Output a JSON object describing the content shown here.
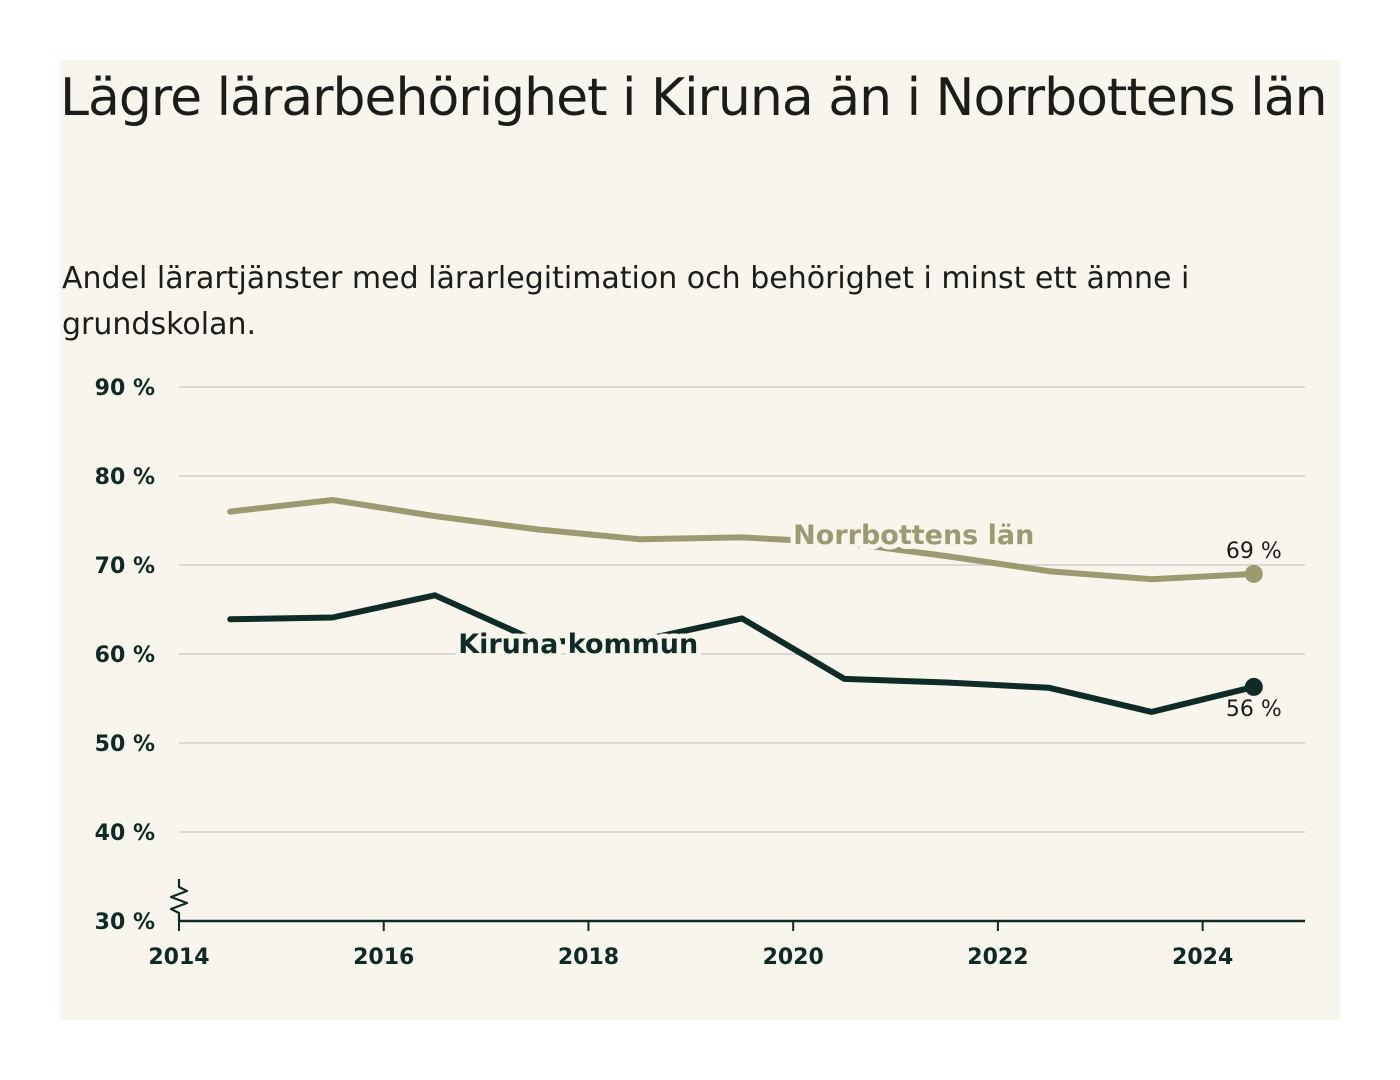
{
  "title": "Lägre lärarbehörighet i Kiruna än i Norrbottens län",
  "subtitle": "Andel lärartjänster med lärarlegitimation och behörighet i minst ett ämne i grundskolan.",
  "colors": {
    "background": "#f8f6ec",
    "norrbotten": "#9d9a72",
    "kiruna": "#0f2b27",
    "grid": "#d9d8d4",
    "axis": "#0e2a26"
  },
  "chart_data": {
    "type": "line",
    "title": "Lägre lärarbehörighet i Kiruna än i Norrbottens län",
    "subtitle": "Andel lärartjänster med lärarlegitimation och behörighet i minst ett ämne i grundskolan.",
    "xlabel": "",
    "ylabel": "",
    "xlim": [
      2014,
      2025
    ],
    "ylim": [
      30,
      90
    ],
    "x_ticks": [
      2014,
      2016,
      2018,
      2020,
      2022,
      2024
    ],
    "x_tick_labels": [
      "2014",
      "2016",
      "2018",
      "2020",
      "2022",
      "2024"
    ],
    "y_ticks": [
      30,
      40,
      50,
      60,
      70,
      80,
      90
    ],
    "y_tick_labels": [
      "30 %",
      "40 %",
      "50 %",
      "60 %",
      "70 %",
      "80 %",
      "90 %"
    ],
    "grid": true,
    "axis_break": true,
    "x": [
      2014.5,
      2015.5,
      2016.5,
      2017.5,
      2018.5,
      2019.5,
      2020.5,
      2021.5,
      2022.5,
      2023.5,
      2024.5
    ],
    "series": [
      {
        "name": "Norrbottens län",
        "values": [
          76.0,
          77.3,
          75.5,
          74.0,
          72.9,
          73.1,
          72.5,
          71.0,
          69.3,
          68.4,
          69.0
        ],
        "end_label": "69 %",
        "color": "#9d9a72"
      },
      {
        "name": "Kiruna kommun",
        "values": [
          63.9,
          64.1,
          66.6,
          61.4,
          61.5,
          64.0,
          57.2,
          56.8,
          56.2,
          53.5,
          56.3
        ],
        "end_label": "56 %",
        "color": "#0f2b27"
      }
    ]
  }
}
